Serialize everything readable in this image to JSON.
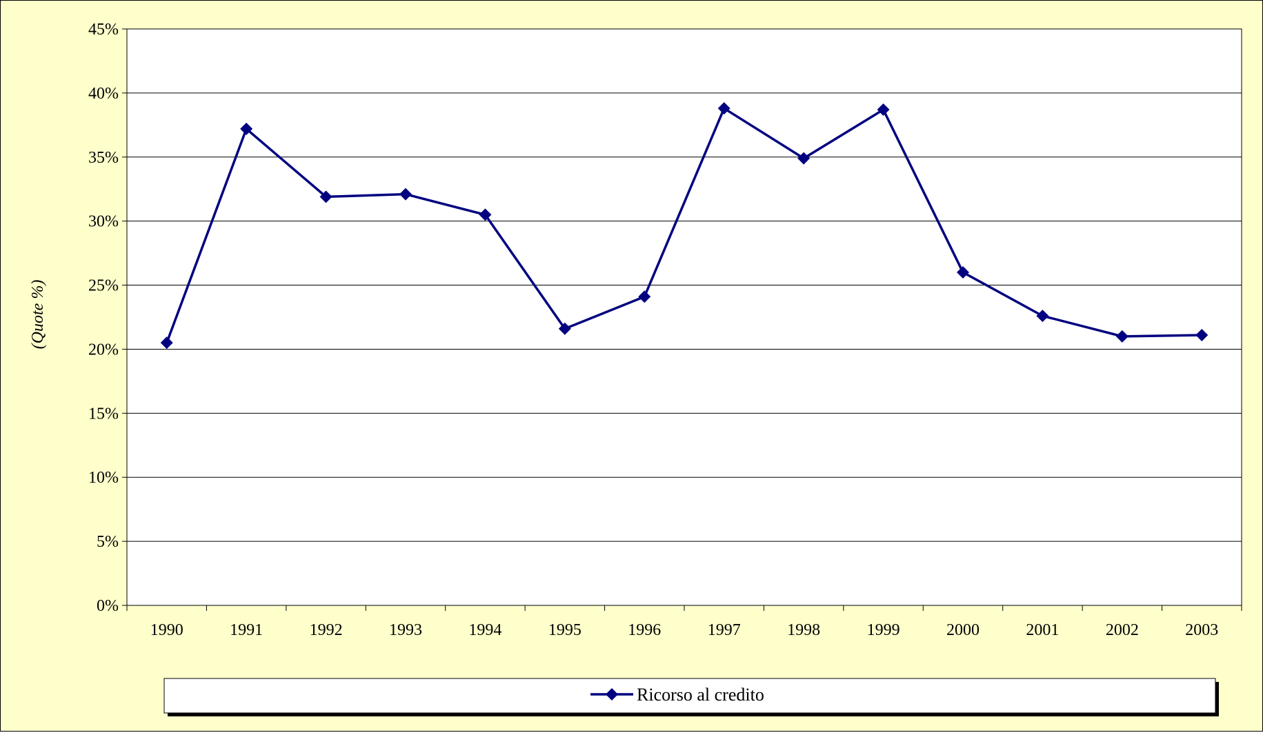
{
  "colors": {
    "background": "#FFFFCC",
    "plot_area": "#FFFFFF",
    "series": "#000080",
    "gridline": "#000000",
    "border": "#000000",
    "legend_shadow": "#000000"
  },
  "chart_data": {
    "type": "line",
    "title": "",
    "xlabel": "",
    "ylabel": "(Quote %)",
    "x": [
      "1990",
      "1991",
      "1992",
      "1993",
      "1994",
      "1995",
      "1996",
      "1997",
      "1998",
      "1999",
      "2000",
      "2001",
      "2002",
      "2003"
    ],
    "series": [
      {
        "name": "Ricorso al credito",
        "marker": "diamond",
        "values": [
          20.5,
          37.2,
          31.9,
          32.1,
          30.5,
          21.6,
          24.1,
          38.8,
          34.9,
          38.7,
          26.0,
          22.6,
          21.0,
          21.1
        ]
      }
    ],
    "ylim": [
      0,
      45
    ],
    "yticks": [
      0,
      5,
      10,
      15,
      20,
      25,
      30,
      35,
      40,
      45
    ],
    "ytick_labels": [
      "0%",
      "5%",
      "10%",
      "15%",
      "20%",
      "25%",
      "30%",
      "35%",
      "40%",
      "45%"
    ],
    "grid": true,
    "legend_position": "bottom"
  }
}
